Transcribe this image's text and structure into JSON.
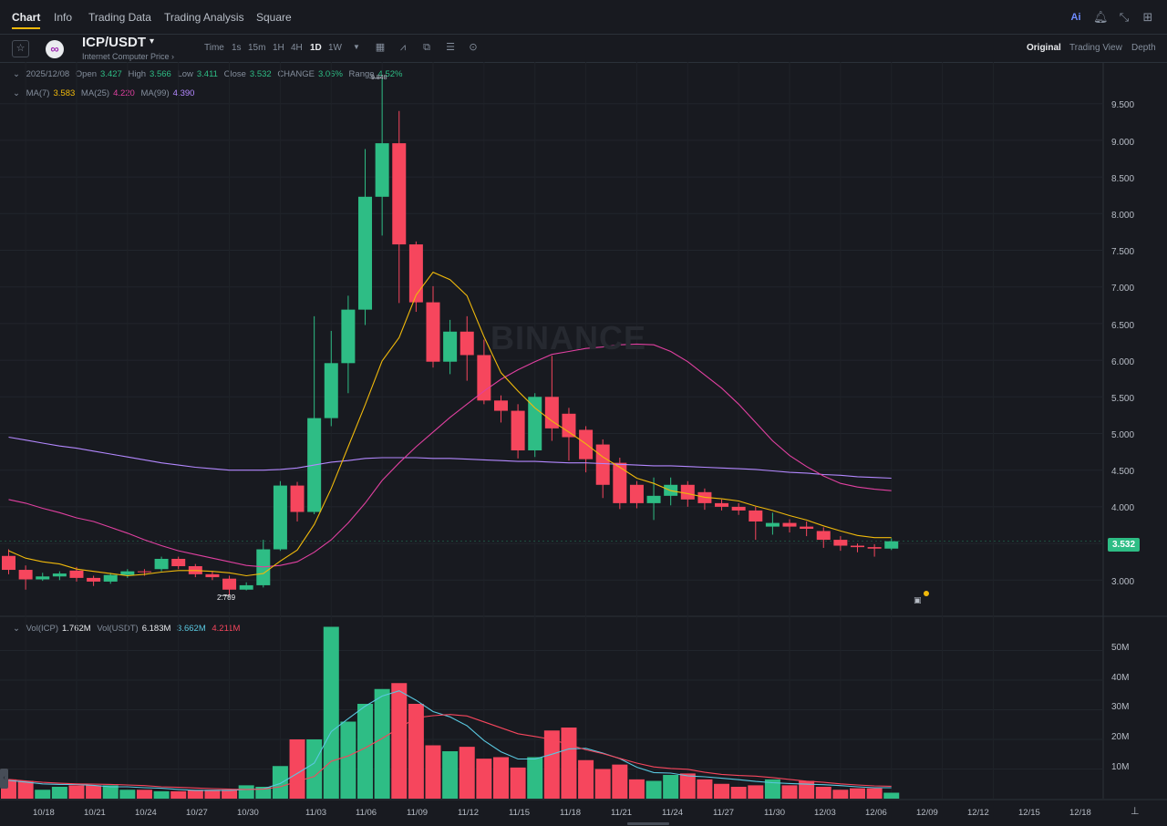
{
  "nav": {
    "tabs": [
      "Chart",
      "Info",
      "Trading Data",
      "Trading Analysis",
      "Square"
    ],
    "right_icons": [
      "ai-icon",
      "bell-icon",
      "collapse-icon",
      "grid-icon"
    ],
    "ai_label": "Ai"
  },
  "pair": {
    "symbol": "ICP/USDT",
    "caret": "▾",
    "subtitle": "Internet Computer Price ›"
  },
  "intervals": [
    "Time",
    "1s",
    "15m",
    "1H",
    "4H",
    "1D",
    "1W"
  ],
  "active_interval": "1D",
  "tool_icons": [
    "dropdown-caret-icon",
    "calendar-icon",
    "indicator-icon",
    "compare-icon",
    "settings-icon",
    "info-icon"
  ],
  "views": [
    "Original",
    "Trading View",
    "Depth"
  ],
  "active_view": "Original",
  "ohlc": {
    "date": "2025/12/08",
    "open_label": "Open",
    "open": "3.427",
    "high_label": "High",
    "high": "3.566",
    "low_label": "Low",
    "low": "3.411",
    "close_label": "Close",
    "close": "3.532",
    "change_label": "CHANGE",
    "change": "3.06%",
    "range_label": "Range",
    "range": "4.52%"
  },
  "ma": {
    "ma7_label": "MA(7)",
    "ma7": "3.583",
    "ma25_label": "MA(25)",
    "ma25": "4.220",
    "ma99_label": "MA(99)",
    "ma99": "4.390"
  },
  "vol": {
    "vol_icp_label": "Vol(ICP)",
    "vol_icp": "1.762M",
    "vol_usdt_label": "Vol(USDT)",
    "vol_usdt": "6.183M",
    "ma5": "3.662M",
    "ma10": "4.211M"
  },
  "price_axis": [
    "9.500",
    "9.000",
    "8.500",
    "8.000",
    "7.500",
    "7.000",
    "6.500",
    "6.000",
    "5.500",
    "5.000",
    "4.500",
    "4.000",
    "3.500",
    "3.000"
  ],
  "volume_axis": [
    "50M",
    "40M",
    "30M",
    "20M",
    "10M"
  ],
  "date_axis": [
    "10/18",
    "10/21",
    "10/24",
    "10/27",
    "10/30",
    "11/03",
    "11/06",
    "11/09",
    "11/12",
    "11/15",
    "11/18",
    "11/21",
    "11/24",
    "11/27",
    "11/30",
    "12/03",
    "12/06",
    "12/09",
    "12/12",
    "12/15",
    "12/18"
  ],
  "last_price": "3.532",
  "low_marker": "2.789",
  "high_marker": "9.848",
  "watermark": "BINANCE",
  "colors": {
    "up": "#2ebd85",
    "down": "#f6465d",
    "ma7": "#f0b90b",
    "ma25": "#e040a0",
    "ma99": "#b388ff",
    "vol_ma5": "#5ac8e0",
    "vol_ma10": "#f6465d",
    "accent": "#f0b90b"
  },
  "chart_data": {
    "type": "candlestick",
    "x": [
      "10/17",
      "10/18",
      "10/19",
      "10/20",
      "10/21",
      "10/22",
      "10/23",
      "10/24",
      "10/25",
      "10/26",
      "10/27",
      "10/28",
      "10/29",
      "10/30",
      "10/31",
      "11/01",
      "11/02",
      "11/03",
      "11/04",
      "11/05",
      "11/06",
      "11/07",
      "11/08",
      "11/09",
      "11/10",
      "11/11",
      "11/12",
      "11/13",
      "11/14",
      "11/15",
      "11/16",
      "11/17",
      "11/18",
      "11/19",
      "11/20",
      "11/21",
      "11/22",
      "11/23",
      "11/24",
      "11/25",
      "11/26",
      "11/27",
      "11/28",
      "11/29",
      "11/30",
      "12/01",
      "12/02",
      "12/03",
      "12/04",
      "12/05",
      "12/06",
      "12/07",
      "12/08"
    ],
    "open": [
      3.33,
      3.14,
      3.01,
      3.05,
      3.13,
      3.03,
      2.98,
      3.07,
      3.12,
      3.15,
      3.29,
      3.19,
      3.08,
      3.02,
      2.87,
      2.93,
      3.42,
      4.29,
      3.93,
      5.21,
      5.96,
      6.69,
      8.23,
      8.96,
      7.58,
      6.79,
      5.98,
      6.39,
      6.07,
      5.45,
      5.31,
      4.77,
      5.5,
      5.27,
      5.05,
      4.85,
      4.6,
      4.3,
      4.05,
      4.15,
      4.3,
      4.2,
      4.05,
      4.0,
      3.95,
      3.73,
      3.78,
      3.73,
      3.67,
      3.55,
      3.47,
      3.45,
      3.43
    ],
    "close": [
      3.14,
      3.01,
      3.05,
      3.09,
      3.03,
      2.98,
      3.07,
      3.12,
      3.11,
      3.29,
      3.19,
      3.08,
      3.04,
      2.87,
      2.93,
      3.42,
      4.29,
      3.93,
      5.21,
      5.96,
      6.69,
      8.23,
      8.96,
      7.58,
      6.79,
      5.98,
      6.39,
      6.07,
      5.45,
      5.31,
      4.77,
      5.5,
      5.07,
      4.95,
      4.65,
      4.3,
      4.05,
      4.05,
      4.15,
      4.3,
      4.1,
      4.05,
      4.0,
      3.95,
      3.8,
      3.78,
      3.73,
      3.7,
      3.55,
      3.47,
      3.45,
      3.43,
      3.53
    ],
    "high": [
      3.42,
      3.2,
      3.1,
      3.12,
      3.18,
      3.06,
      3.1,
      3.15,
      3.15,
      3.32,
      3.32,
      3.22,
      3.12,
      3.06,
      2.97,
      3.55,
      4.35,
      4.34,
      6.6,
      6.4,
      6.88,
      8.88,
      9.85,
      9.4,
      7.62,
      7.01,
      6.55,
      6.6,
      6.28,
      5.52,
      5.4,
      5.55,
      6.06,
      5.35,
      5.1,
      4.92,
      4.67,
      4.35,
      4.4,
      4.4,
      4.35,
      4.25,
      4.1,
      4.05,
      4.0,
      3.92,
      3.83,
      3.8,
      3.72,
      3.6,
      3.5,
      3.49,
      3.57
    ],
    "low": [
      3.08,
      2.87,
      2.99,
      3.0,
      2.98,
      2.92,
      2.95,
      3.03,
      3.06,
      3.12,
      3.15,
      3.04,
      3.0,
      2.79,
      2.86,
      2.9,
      3.4,
      3.8,
      3.9,
      5.1,
      5.55,
      6.48,
      7.7,
      6.78,
      6.66,
      5.9,
      5.81,
      5.72,
      5.4,
      5.15,
      4.66,
      4.68,
      4.9,
      4.63,
      4.47,
      4.12,
      3.97,
      3.98,
      3.82,
      4.02,
      4.0,
      3.96,
      3.95,
      3.89,
      3.55,
      3.62,
      3.65,
      3.6,
      3.44,
      3.4,
      3.38,
      3.32,
      3.41
    ],
    "volume_m": [
      6.5,
      6.0,
      3.0,
      4.0,
      4.5,
      4.5,
      4.5,
      3.0,
      3.0,
      2.5,
      2.5,
      3.0,
      3.0,
      3.0,
      4.5,
      4.0,
      11.0,
      20.0,
      20.0,
      58.0,
      26.0,
      32.0,
      37.0,
      39.0,
      32.0,
      18.0,
      16.0,
      17.5,
      13.5,
      14.0,
      10.5,
      14.0,
      23.0,
      24.0,
      13.0,
      10.0,
      11.5,
      6.5,
      6.0,
      8.0,
      8.5,
      6.5,
      5.0,
      4.0,
      4.5,
      6.5,
      4.5,
      6.0,
      4.0,
      3.0,
      3.5,
      3.5,
      2.0
    ],
    "ma7": [
      3.4,
      3.3,
      3.25,
      3.22,
      3.15,
      3.12,
      3.09,
      3.06,
      3.08,
      3.11,
      3.13,
      3.13,
      3.12,
      3.1,
      3.06,
      3.09,
      3.26,
      3.41,
      3.76,
      4.25,
      4.82,
      5.39,
      5.99,
      6.31,
      6.89,
      7.2,
      7.1,
      6.88,
      6.32,
      5.83,
      5.58,
      5.35,
      5.17,
      5.02,
      4.86,
      4.68,
      4.54,
      4.39,
      4.32,
      4.22,
      4.18,
      4.13,
      4.11,
      4.08,
      4.01,
      3.95,
      3.88,
      3.82,
      3.74,
      3.67,
      3.61,
      3.58,
      3.58
    ],
    "ma25": [
      4.1,
      4.05,
      3.98,
      3.92,
      3.85,
      3.8,
      3.72,
      3.64,
      3.55,
      3.47,
      3.4,
      3.35,
      3.3,
      3.25,
      3.2,
      3.18,
      3.2,
      3.25,
      3.38,
      3.55,
      3.78,
      4.05,
      4.36,
      4.6,
      4.82,
      5.02,
      5.22,
      5.4,
      5.58,
      5.74,
      5.87,
      5.98,
      6.08,
      6.12,
      6.16,
      6.18,
      6.21,
      6.22,
      6.21,
      6.12,
      5.98,
      5.8,
      5.62,
      5.4,
      5.15,
      4.9,
      4.7,
      4.55,
      4.42,
      4.32,
      4.27,
      4.24,
      4.22
    ],
    "ma99": [
      4.95,
      4.91,
      4.87,
      4.83,
      4.8,
      4.76,
      4.72,
      4.68,
      4.64,
      4.6,
      4.57,
      4.54,
      4.52,
      4.5,
      4.5,
      4.5,
      4.51,
      4.53,
      4.57,
      4.61,
      4.63,
      4.66,
      4.67,
      4.67,
      4.67,
      4.66,
      4.66,
      4.65,
      4.64,
      4.63,
      4.62,
      4.62,
      4.61,
      4.6,
      4.6,
      4.59,
      4.58,
      4.57,
      4.56,
      4.56,
      4.55,
      4.54,
      4.53,
      4.52,
      4.51,
      4.49,
      4.47,
      4.46,
      4.44,
      4.43,
      4.41,
      4.4,
      4.39
    ],
    "vol_ma5": [
      6.2,
      5.6,
      5.0,
      4.8,
      4.8,
      4.5,
      4.0,
      4.0,
      3.7,
      3.5,
      3.1,
      2.8,
      2.8,
      2.8,
      3.1,
      3.3,
      5.1,
      8.5,
      12.0,
      22.6,
      27.0,
      31.2,
      34.6,
      36.4,
      33.2,
      29.4,
      27.6,
      24.6,
      19.6,
      15.8,
      13.4,
      13.4,
      15.0,
      16.8,
      17.0,
      15.4,
      13.5,
      10.6,
      8.8,
      8.6,
      7.7,
      7.4,
      6.9,
      6.4,
      5.8,
      5.4,
      5.1,
      4.9,
      4.7,
      4.4,
      4.0,
      3.7,
      3.7
    ],
    "vol_ma10": [
      6.5,
      6.0,
      5.5,
      5.2,
      5.0,
      4.9,
      4.8,
      4.6,
      4.4,
      4.0,
      3.8,
      3.6,
      3.4,
      3.2,
      3.1,
      3.2,
      4.0,
      5.8,
      7.5,
      12.6,
      14.4,
      17.1,
      20.3,
      23.8,
      27.3,
      28.0,
      28.4,
      27.9,
      25.9,
      23.9,
      21.9,
      21.0,
      20.0,
      18.2,
      16.5,
      15.2,
      13.6,
      12.0,
      10.7,
      10.2,
      9.9,
      8.9,
      8.2,
      7.8,
      7.6,
      7.1,
      6.5,
      5.9,
      5.5,
      5.0,
      4.6,
      4.3,
      4.2
    ],
    "y_range": [
      2.6,
      9.95
    ],
    "volume_range_m": [
      0,
      60
    ],
    "grid": true
  }
}
